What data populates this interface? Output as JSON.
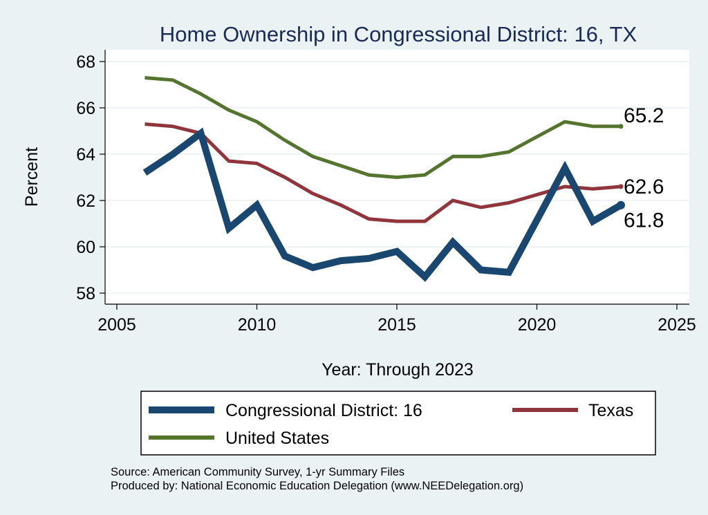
{
  "chart_data": {
    "type": "line",
    "title": "Home Ownership in Congressional District:  16, TX",
    "xlabel": "Year: Through 2023",
    "ylabel": "Percent",
    "xlim": [
      2005,
      2025
    ],
    "ylim": [
      58,
      68
    ],
    "x_ticks": [
      "2005",
      "2010",
      "2015",
      "2020",
      "2025"
    ],
    "y_ticks": [
      "58",
      "60",
      "62",
      "64",
      "66",
      "68"
    ],
    "grid": "horizontal",
    "legend_position": "bottom",
    "colors": {
      "district": "#1a476f",
      "texas": "#90353b",
      "us": "#55752f"
    },
    "series": [
      {
        "name": "Congressional District:  16",
        "x": [
          2006,
          2007,
          2008,
          2009,
          2010,
          2011,
          2012,
          2013,
          2014,
          2015,
          2016,
          2017,
          2018,
          2019,
          2021,
          2022,
          2023
        ],
        "y": [
          63.2,
          64.0,
          64.9,
          60.8,
          61.8,
          59.6,
          59.1,
          59.4,
          59.5,
          59.8,
          58.7,
          60.2,
          59.0,
          58.9,
          63.4,
          61.1,
          61.8
        ],
        "end_label": "61.8"
      },
      {
        "name": "Texas",
        "x": [
          2006,
          2007,
          2008,
          2009,
          2010,
          2011,
          2012,
          2013,
          2014,
          2015,
          2016,
          2017,
          2018,
          2019,
          2021,
          2022,
          2023
        ],
        "y": [
          65.3,
          65.2,
          64.9,
          63.7,
          63.6,
          63.0,
          62.3,
          61.8,
          61.2,
          61.1,
          61.1,
          62.0,
          61.7,
          61.9,
          62.6,
          62.5,
          62.6
        ],
        "end_label": "62.6"
      },
      {
        "name": "United States",
        "x": [
          2006,
          2007,
          2008,
          2009,
          2010,
          2011,
          2012,
          2013,
          2014,
          2015,
          2016,
          2017,
          2018,
          2019,
          2021,
          2022,
          2023
        ],
        "y": [
          67.3,
          67.2,
          66.6,
          65.9,
          65.4,
          64.6,
          63.9,
          63.5,
          63.1,
          63.0,
          63.1,
          63.9,
          63.9,
          64.1,
          65.4,
          65.2,
          65.2
        ],
        "end_label": "65.2"
      }
    ],
    "source_note": "Source: American Community Survey, 1-yr Summary Files",
    "producer_note": "Produced by: National Economic Education Delegation (www.NEEDelegation.org)"
  }
}
